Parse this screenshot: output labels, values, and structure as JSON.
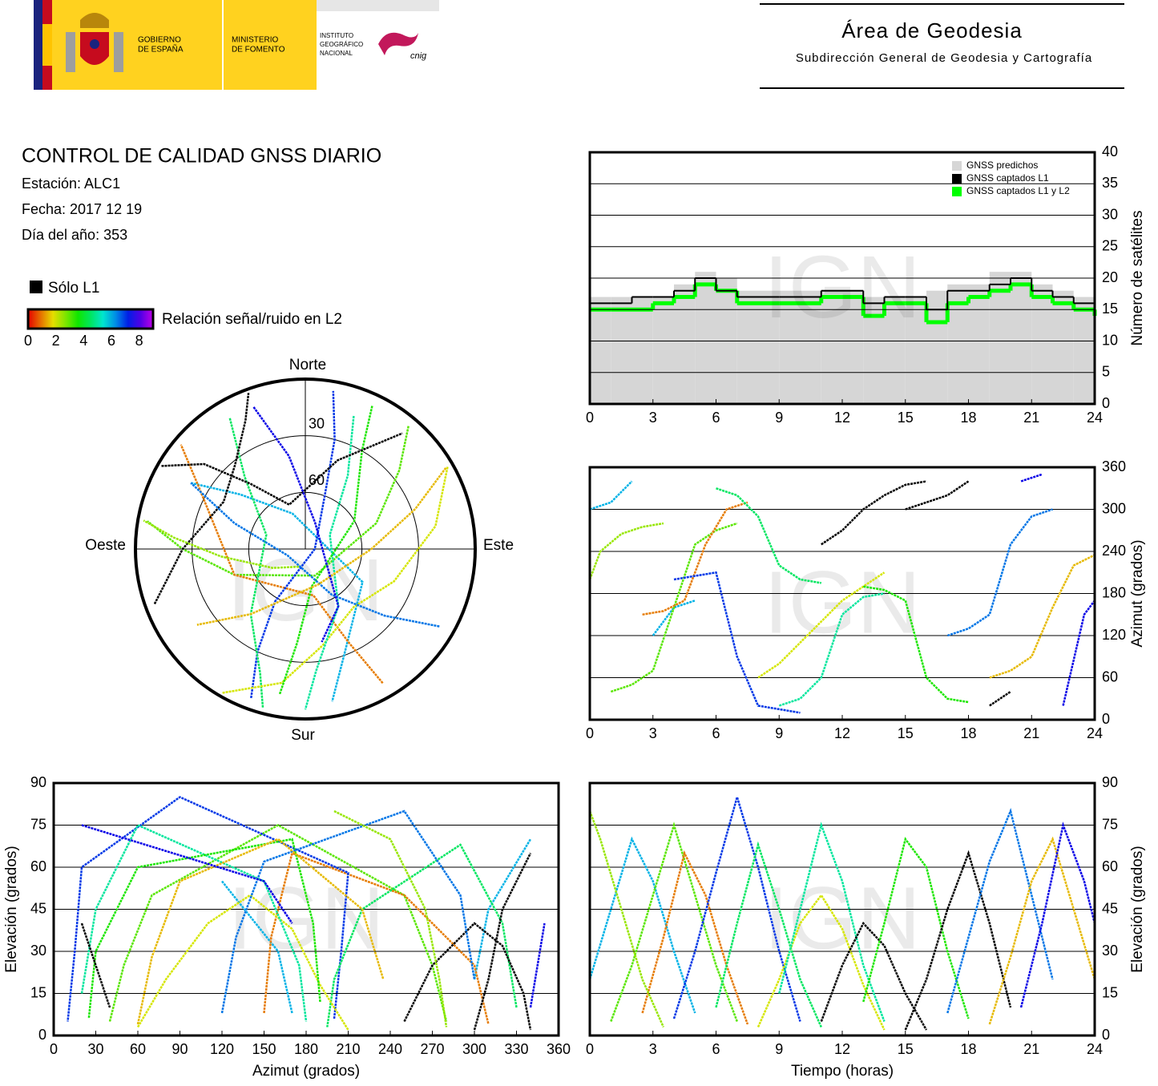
{
  "header": {
    "gobierno": [
      "GOBIERNO",
      "DE ESPAÑA"
    ],
    "ministerio": [
      "MINISTERIO",
      "DE FOMENTO"
    ],
    "instituto": [
      "INSTITUTO",
      "GEOGRÁFICO",
      "NACIONAL"
    ],
    "cnig": "cnig",
    "area": "Área de Geodesia",
    "subdireccion": "Subdirección General de Geodesia y Cartografía"
  },
  "info": {
    "title": "CONTROL DE CALIDAD GNSS DIARIO",
    "station": "Estación: ALC1",
    "date": "Fecha: 2017 12 19",
    "doy": "Día del año: 353"
  },
  "legend": {
    "solo_l1": "Sólo L1",
    "solo_color": "#000000",
    "snr_label": "Relación señal/ruido en L2",
    "snr_lim": [
      0,
      9
    ],
    "snr_ticks": [
      0,
      2,
      4,
      6,
      8
    ]
  },
  "watermark": "IGN",
  "chart_data": [
    {
      "type": "polar",
      "north": "Norte",
      "south": "Sur",
      "east": "Este",
      "west": "Oeste",
      "rticks": [
        30,
        60
      ],
      "series": [
        {
          "time": [
            0,
            1,
            2,
            3,
            4,
            5
          ],
          "elevation": [
            20,
            45,
            70,
            55,
            30,
            8
          ],
          "azimuth": [
            300,
            310,
            340,
            120,
            160,
            170
          ],
          "snr": 6
        },
        {
          "time": [
            1,
            2,
            3,
            4,
            5,
            6,
            7
          ],
          "elevation": [
            5,
            25,
            50,
            75,
            50,
            25,
            5
          ],
          "azimuth": [
            40,
            50,
            70,
            160,
            250,
            270,
            280
          ],
          "snr": 3
        },
        {
          "time": [
            2.5,
            3.5,
            4.5,
            5.5,
            6.5,
            7.5
          ],
          "elevation": [
            8,
            35,
            65,
            50,
            25,
            4
          ],
          "azimuth": [
            150,
            155,
            170,
            250,
            300,
            310
          ],
          "snr": 1
        },
        {
          "time": [
            4,
            5,
            6,
            7,
            8,
            9,
            10
          ],
          "elevation": [
            6,
            30,
            58,
            85,
            60,
            30,
            5
          ],
          "azimuth": [
            200,
            205,
            210,
            90,
            20,
            15,
            10
          ],
          "snr": 7
        },
        {
          "time": [
            6,
            7,
            8,
            9,
            10,
            11
          ],
          "elevation": [
            10,
            40,
            68,
            45,
            20,
            3
          ],
          "azimuth": [
            330,
            320,
            290,
            220,
            200,
            195
          ],
          "snr": 4.5
        },
        {
          "time": [
            8,
            9,
            10,
            11,
            12,
            13,
            14
          ],
          "elevation": [
            3,
            20,
            40,
            50,
            38,
            18,
            2
          ],
          "azimuth": [
            60,
            80,
            110,
            140,
            170,
            190,
            210
          ],
          "snr": 2
        },
        {
          "time": [
            9,
            10,
            11,
            12,
            13,
            14
          ],
          "elevation": [
            15,
            45,
            75,
            55,
            25,
            5
          ],
          "azimuth": [
            20,
            30,
            60,
            150,
            175,
            180
          ],
          "snr": 5
        },
        {
          "time": [
            11,
            12,
            13,
            14,
            15,
            16
          ],
          "elevation": [
            5,
            25,
            40,
            32,
            15,
            2
          ],
          "azimuth": [
            250,
            270,
            300,
            320,
            335,
            340
          ],
          "snr": null
        },
        {
          "time": [
            13,
            14,
            15,
            16,
            17,
            18
          ],
          "elevation": [
            12,
            40,
            70,
            60,
            30,
            6
          ],
          "azimuth": [
            190,
            185,
            170,
            60,
            30,
            25
          ],
          "snr": 3.5
        },
        {
          "time": [
            15,
            16,
            17,
            18,
            19,
            20
          ],
          "elevation": [
            2,
            20,
            45,
            65,
            40,
            10
          ],
          "azimuth": [
            300,
            310,
            320,
            340,
            20,
            40
          ],
          "snr": null
        },
        {
          "time": [
            17,
            18,
            19,
            20,
            21,
            22
          ],
          "elevation": [
            8,
            35,
            62,
            80,
            50,
            20
          ],
          "azimuth": [
            120,
            130,
            150,
            250,
            290,
            300
          ],
          "snr": 6.5
        },
        {
          "time": [
            19,
            20,
            21,
            22,
            23,
            24
          ],
          "elevation": [
            4,
            28,
            55,
            70,
            45,
            20
          ],
          "azimuth": [
            60,
            70,
            90,
            160,
            220,
            235
          ],
          "snr": 1.5
        },
        {
          "time": [
            20.5,
            21.5,
            22.5,
            23.5,
            24
          ],
          "elevation": [
            10,
            40,
            75,
            55,
            40
          ],
          "azimuth": [
            340,
            350,
            20,
            150,
            170
          ],
          "snr": 7.5
        },
        {
          "time": [
            0,
            0.5,
            1.5,
            2.5,
            3.5
          ],
          "elevation": [
            80,
            70,
            45,
            20,
            3
          ],
          "azimuth": [
            200,
            240,
            265,
            275,
            280
          ],
          "snr": 2.5
        }
      ]
    },
    {
      "type": "step",
      "ylabel": "Número de satélites",
      "x": [
        0,
        1,
        2,
        3,
        4,
        5,
        6,
        7,
        8,
        9,
        10,
        11,
        12,
        13,
        14,
        15,
        16,
        17,
        18,
        19,
        20,
        21,
        22,
        23,
        24
      ],
      "xlim": [
        0,
        24
      ],
      "xticks": [
        0,
        3,
        6,
        9,
        12,
        15,
        18,
        21,
        24
      ],
      "ylim": [
        0,
        40
      ],
      "yticks": [
        0,
        5,
        10,
        15,
        20,
        25,
        30,
        35,
        40
      ],
      "grid": true,
      "legend": "upper right",
      "series": [
        {
          "name": "GNSS predichos",
          "color": "#d6d6d6",
          "values": [
            17,
            17,
            17,
            17,
            19,
            21,
            20,
            18,
            18,
            18,
            18,
            18,
            18,
            17,
            17,
            17,
            18,
            19,
            19,
            21,
            21,
            19,
            18,
            17,
            17
          ]
        },
        {
          "name": "GNSS captados L1",
          "color": "#000000",
          "values": [
            16,
            16,
            17,
            17,
            18,
            20,
            18,
            17,
            17,
            17,
            17,
            18,
            18,
            16,
            17,
            17,
            15,
            18,
            18,
            19,
            20,
            18,
            17,
            16,
            15
          ]
        },
        {
          "name": "GNSS captados L1 y L2",
          "color": "#00ff00",
          "values": [
            15,
            15,
            15,
            16,
            17,
            19,
            18,
            16,
            16,
            16,
            16,
            17,
            17,
            14,
            16,
            16,
            13,
            16,
            17,
            18,
            19,
            17,
            16,
            15,
            14
          ]
        }
      ]
    },
    {
      "type": "track",
      "x_var": "time",
      "y_var": "azimuth",
      "ylabel": "Azimut (grados)",
      "xlim": [
        0,
        24
      ],
      "xticks": [
        0,
        3,
        6,
        9,
        12,
        15,
        18,
        21,
        24
      ],
      "ylim": [
        0,
        360
      ],
      "yticks": [
        0,
        60,
        120,
        180,
        240,
        300,
        360
      ],
      "grid": true
    },
    {
      "type": "track",
      "x_var": "azimuth",
      "y_var": "elevation",
      "xlabel": "Azimut (grados)",
      "ylabel": "Elevación (grados)",
      "xlim": [
        0,
        360
      ],
      "xticks": [
        0,
        30,
        60,
        90,
        120,
        150,
        180,
        210,
        240,
        270,
        300,
        330,
        360
      ],
      "ylim": [
        0,
        90
      ],
      "yticks": [
        0,
        15,
        30,
        45,
        60,
        75,
        90
      ],
      "grid": true
    },
    {
      "type": "track",
      "x_var": "time",
      "y_var": "elevation",
      "xlabel": "Tiempo (horas)",
      "ylabel": "Elevación (grados)",
      "xlim": [
        0,
        24
      ],
      "xticks": [
        0,
        3,
        6,
        9,
        12,
        15,
        18,
        21,
        24
      ],
      "ylim": [
        0,
        90
      ],
      "yticks": [
        0,
        15,
        30,
        45,
        60,
        75,
        90
      ],
      "grid": true
    }
  ]
}
